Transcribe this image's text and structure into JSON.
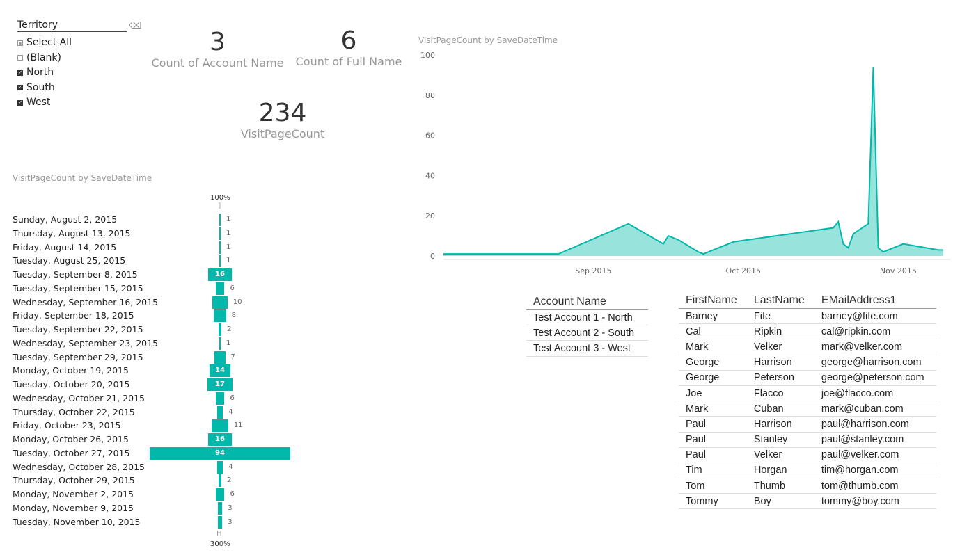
{
  "slicer": {
    "title": "Territory",
    "items": [
      {
        "label": "Select All",
        "state": "partial"
      },
      {
        "label": "(Blank)",
        "state": "unchecked"
      },
      {
        "label": "North",
        "state": "checked"
      },
      {
        "label": "South",
        "state": "checked"
      },
      {
        "label": "West",
        "state": "checked"
      }
    ]
  },
  "cards": {
    "account_count": {
      "value": "3",
      "label": "Count of Account Name"
    },
    "fullname_count": {
      "value": "6",
      "label": "Count of Full Name"
    },
    "visit_count": {
      "value": "234",
      "label": "VisitPageCount"
    }
  },
  "funnel": {
    "title": "VisitPageCount by SaveDateTime",
    "top_label": "100%",
    "bottom_label": "300%",
    "items": [
      {
        "label": "Sunday, August 2, 2015",
        "value": 1
      },
      {
        "label": "Thursday, August 13, 2015",
        "value": 1
      },
      {
        "label": "Friday, August 14, 2015",
        "value": 1
      },
      {
        "label": "Tuesday, August 25, 2015",
        "value": 1
      },
      {
        "label": "Tuesday, September 8, 2015",
        "value": 16
      },
      {
        "label": "Tuesday, September 15, 2015",
        "value": 6
      },
      {
        "label": "Wednesday, September 16, 2015",
        "value": 10
      },
      {
        "label": "Friday, September 18, 2015",
        "value": 8
      },
      {
        "label": "Tuesday, September 22, 2015",
        "value": 2
      },
      {
        "label": "Wednesday, September 23, 2015",
        "value": 1
      },
      {
        "label": "Tuesday, September 29, 2015",
        "value": 7
      },
      {
        "label": "Monday, October 19, 2015",
        "value": 14
      },
      {
        "label": "Tuesday, October 20, 2015",
        "value": 17
      },
      {
        "label": "Wednesday, October 21, 2015",
        "value": 6
      },
      {
        "label": "Thursday, October 22, 2015",
        "value": 4
      },
      {
        "label": "Friday, October 23, 2015",
        "value": 11
      },
      {
        "label": "Monday, October 26, 2015",
        "value": 16
      },
      {
        "label": "Tuesday, October 27, 2015",
        "value": 94
      },
      {
        "label": "Wednesday, October 28, 2015",
        "value": 4
      },
      {
        "label": "Thursday, October 29, 2015",
        "value": 2
      },
      {
        "label": "Monday, November 2, 2015",
        "value": 6
      },
      {
        "label": "Monday, November 9, 2015",
        "value": 3
      },
      {
        "label": "Tuesday, November 10, 2015",
        "value": 3
      }
    ]
  },
  "chart_data": {
    "type": "area",
    "title": "VisitPageCount by SaveDateTime",
    "x_tick_labels": [
      "Sep 2015",
      "Oct 2015",
      "Nov 2015"
    ],
    "y_ticks": [
      0,
      20,
      40,
      60,
      80,
      100
    ],
    "ylim": [
      0,
      100
    ],
    "xlim": [
      "2015-08-02",
      "2015-11-10"
    ],
    "series": [
      {
        "x": [
          "2015-08-02",
          "2015-08-13",
          "2015-08-14",
          "2015-08-25",
          "2015-09-08",
          "2015-09-15",
          "2015-09-16",
          "2015-09-18",
          "2015-09-22",
          "2015-09-23",
          "2015-09-29",
          "2015-10-19",
          "2015-10-20",
          "2015-10-21",
          "2015-10-22",
          "2015-10-23",
          "2015-10-26",
          "2015-10-27",
          "2015-10-28",
          "2015-10-29",
          "2015-11-02",
          "2015-11-09",
          "2015-11-10"
        ],
        "values": [
          1,
          1,
          1,
          1,
          16,
          6,
          10,
          8,
          2,
          1,
          7,
          14,
          17,
          6,
          4,
          11,
          16,
          94,
          4,
          2,
          6,
          3,
          3
        ]
      }
    ],
    "color": "#01b8aa"
  },
  "accounts_table": {
    "header": "Account Name",
    "rows": [
      "Test Account 1 - North",
      "Test Account 2 - South",
      "Test Account 3 - West"
    ]
  },
  "contacts_table": {
    "headers": [
      "FirstName",
      "LastName",
      "EMailAddress1"
    ],
    "rows": [
      [
        "Barney",
        "Fife",
        "barney@fife.com"
      ],
      [
        "Cal",
        "Ripkin",
        "cal@ripkin.com"
      ],
      [
        "Mark",
        "Velker",
        "mark@velker.com"
      ],
      [
        "George",
        "Harrison",
        "george@harrison.com"
      ],
      [
        "George",
        "Peterson",
        "george@peterson.com"
      ],
      [
        "Joe",
        "Flacco",
        "joe@flacco.com"
      ],
      [
        "Mark",
        "Cuban",
        "mark@cuban.com"
      ],
      [
        "Paul",
        "Harrison",
        "paul@harrison.com"
      ],
      [
        "Paul",
        "Stanley",
        "paul@stanley.com"
      ],
      [
        "Paul",
        "Velker",
        "paul@velker.com"
      ],
      [
        "Tim",
        "Horgan",
        "tim@horgan.com"
      ],
      [
        "Tom",
        "Thumb",
        "tom@thumb.com"
      ],
      [
        "Tommy",
        "Boy",
        "tommy@boy.com"
      ]
    ]
  },
  "icons": {
    "eraser": "eraser-icon",
    "checkbox": "checkbox-icon"
  }
}
